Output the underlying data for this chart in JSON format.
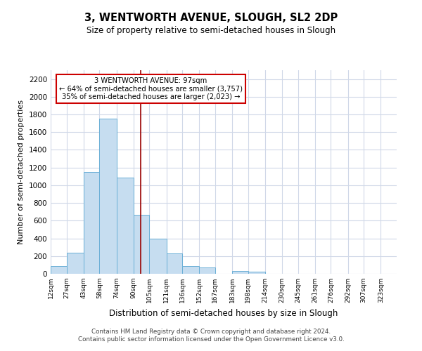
{
  "title": "3, WENTWORTH AVENUE, SLOUGH, SL2 2DP",
  "subtitle": "Size of property relative to semi-detached houses in Slough",
  "xlabel": "Distribution of semi-detached houses by size in Slough",
  "ylabel": "Number of semi-detached properties",
  "footer_line1": "Contains HM Land Registry data © Crown copyright and database right 2024.",
  "footer_line2": "Contains public sector information licensed under the Open Government Licence v3.0.",
  "bar_left_edges": [
    12,
    27,
    43,
    58,
    74,
    90,
    105,
    121,
    136,
    152,
    167,
    183,
    198,
    214,
    230,
    245,
    261,
    276,
    292,
    307
  ],
  "bar_heights": [
    90,
    240,
    1150,
    1750,
    1090,
    670,
    400,
    230,
    90,
    70,
    0,
    35,
    20,
    0,
    0,
    0,
    0,
    0,
    0,
    0
  ],
  "bar_widths": [
    15,
    16,
    15,
    16,
    16,
    15,
    16,
    15,
    16,
    15,
    16,
    15,
    16,
    16,
    15,
    16,
    15,
    16,
    15,
    16
  ],
  "bar_color": "#c6ddf0",
  "bar_edgecolor": "#6aafd6",
  "xlim": [
    12,
    338
  ],
  "ylim": [
    0,
    2300
  ],
  "yticks": [
    0,
    200,
    400,
    600,
    800,
    1000,
    1200,
    1400,
    1600,
    1800,
    2000,
    2200
  ],
  "xtick_labels": [
    "12sqm",
    "27sqm",
    "43sqm",
    "58sqm",
    "74sqm",
    "90sqm",
    "105sqm",
    "121sqm",
    "136sqm",
    "152sqm",
    "167sqm",
    "183sqm",
    "198sqm",
    "214sqm",
    "230sqm",
    "245sqm",
    "261sqm",
    "276sqm",
    "292sqm",
    "307sqm",
    "323sqm"
  ],
  "xtick_positions": [
    12,
    27,
    43,
    58,
    74,
    90,
    105,
    121,
    136,
    152,
    167,
    183,
    198,
    214,
    230,
    245,
    261,
    276,
    292,
    307,
    323
  ],
  "property_value": 97,
  "property_line_color": "#990000",
  "annotation_title": "3 WENTWORTH AVENUE: 97sqm",
  "annotation_line1": "← 64% of semi-detached houses are smaller (3,757)",
  "annotation_line2": "35% of semi-detached houses are larger (2,023) →",
  "annotation_box_color": "#ffffff",
  "annotation_box_edgecolor": "#cc0000",
  "grid_color": "#d0d8e8",
  "background_color": "#ffffff"
}
